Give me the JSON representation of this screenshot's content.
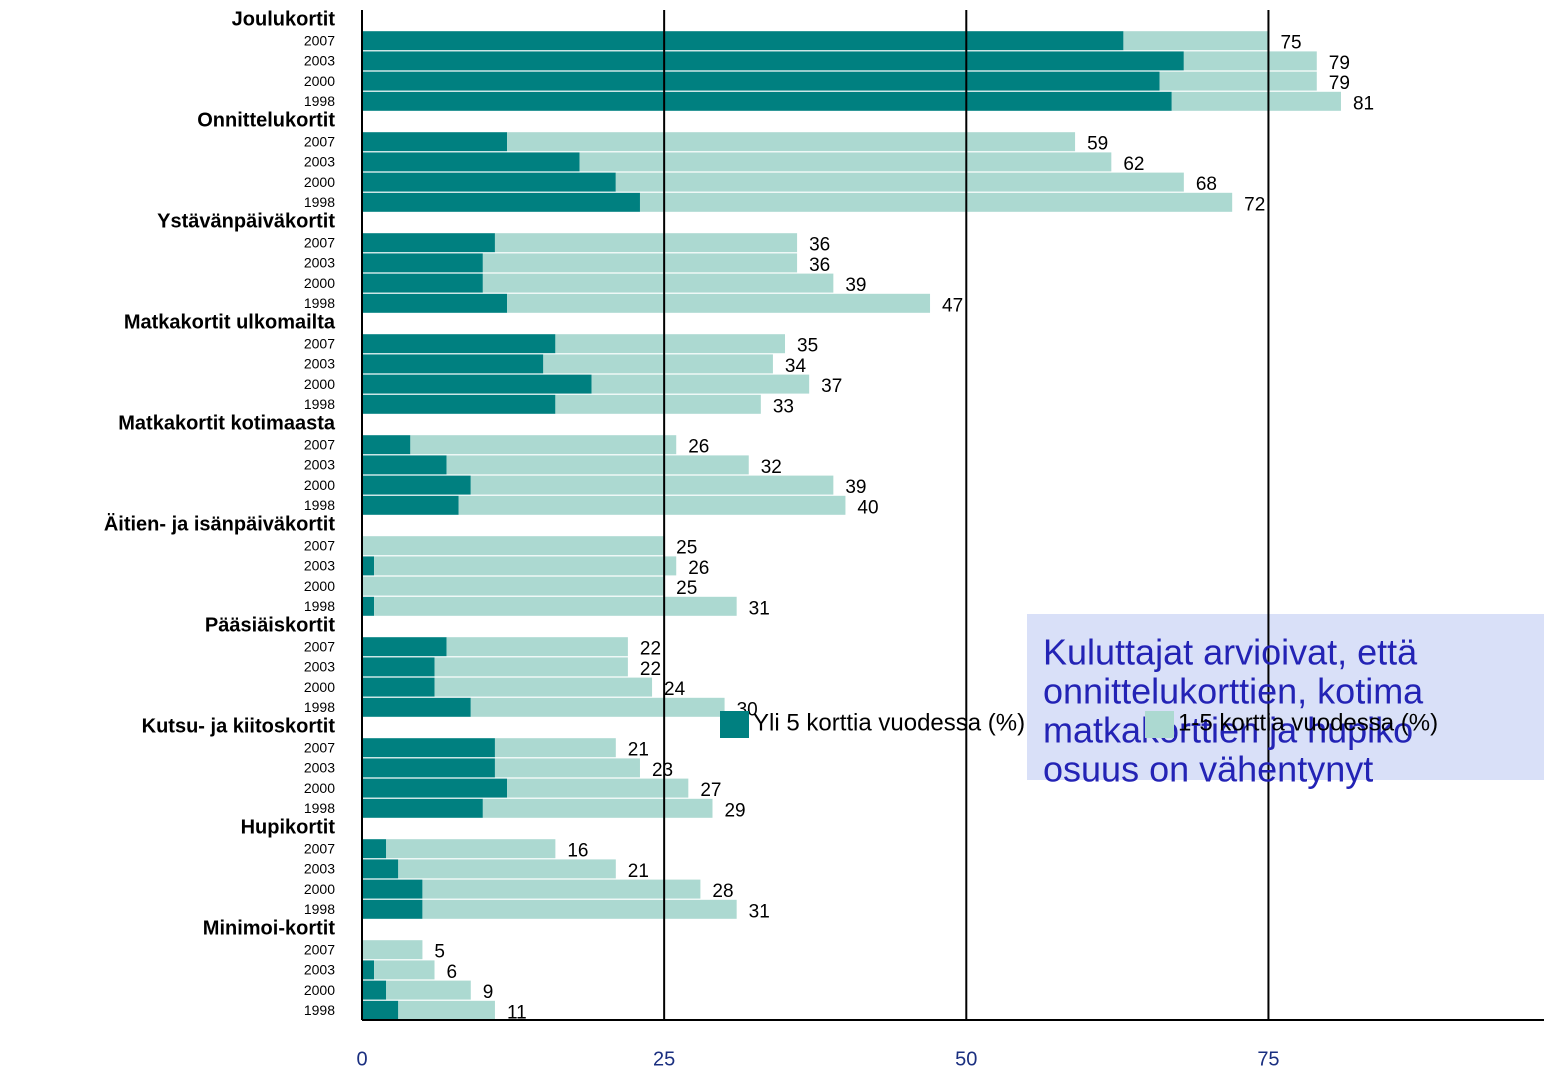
{
  "chart_data": {
    "type": "stacked-barh",
    "groups": [
      "Joulukortit",
      "Onnittelukortit",
      "Ystävänpäiväkortit",
      "Matkakortit ulkomailta",
      "Matkakortit kotimaasta",
      "Äitien- ja isänpäiväkortit",
      "Pääsiäiskortit",
      "Kutsu- ja kiitoskortit",
      "Hupikortit",
      "Minimoi-kortit"
    ],
    "years": [
      "2007",
      "2003",
      "2000",
      "1998"
    ],
    "series": [
      {
        "name": "Yli 5 korttia vuodessa (%)",
        "color": "#008080",
        "values": [
          63,
          68,
          66,
          67,
          12,
          18,
          21,
          23,
          11,
          10,
          10,
          12,
          16,
          15,
          19,
          16,
          4,
          7,
          9,
          8,
          0,
          1,
          0,
          1,
          7,
          6,
          6,
          9,
          11,
          11,
          12,
          10,
          2,
          3,
          5,
          5,
          0,
          1,
          2,
          3
        ]
      },
      {
        "name": "1-5 korttia vuodessa (%)",
        "color": "#acd9d1",
        "values": [
          12,
          11,
          13,
          14,
          47,
          44,
          47,
          49,
          25,
          26,
          29,
          35,
          19,
          19,
          18,
          17,
          22,
          25,
          30,
          32,
          25,
          25,
          25,
          30,
          15,
          16,
          18,
          21,
          10,
          12,
          15,
          19,
          14,
          18,
          23,
          26,
          5,
          5,
          7,
          8
        ]
      }
    ],
    "totals": [
      75,
      79,
      79,
      81,
      59,
      62,
      68,
      72,
      36,
      36,
      39,
      47,
      35,
      34,
      37,
      33,
      26,
      32,
      39,
      40,
      25,
      26,
      25,
      31,
      22,
      22,
      24,
      30,
      21,
      23,
      27,
      29,
      16,
      21,
      28,
      31,
      5,
      6,
      9,
      11
    ],
    "xlim": [
      0,
      97.8
    ],
    "xticks": [
      0,
      25,
      50,
      75
    ],
    "grid": true,
    "annotation": [
      "Kuluttajat arvioivat, että",
      "onnittelukorttien, kotima",
      "matkakorttien  ja hupiko",
      "osuus on vähentynyt"
    ]
  }
}
